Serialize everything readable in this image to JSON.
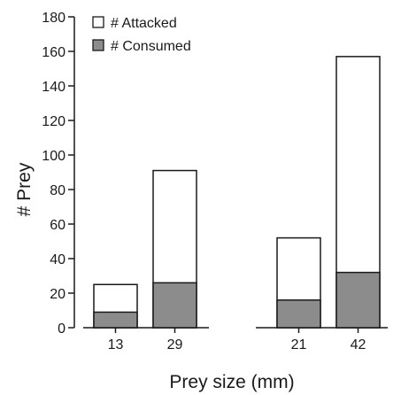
{
  "chart_data": {
    "type": "bar",
    "stacked": true,
    "xlabel": "Prey size (mm)",
    "ylabel": "# Prey",
    "ylim": [
      0,
      180
    ],
    "yticks": [
      0,
      20,
      40,
      60,
      80,
      100,
      120,
      140,
      160,
      180
    ],
    "grid": false,
    "legend_position": "top-left",
    "groups": [
      {
        "categories": [
          "13",
          "29"
        ]
      },
      {
        "categories": [
          "21",
          "42"
        ]
      }
    ],
    "categories": [
      "13",
      "29",
      "21",
      "42"
    ],
    "series": [
      {
        "name": "# Attacked",
        "values": [
          25,
          91,
          52,
          157
        ],
        "color": "#ffffff"
      },
      {
        "name": "# Consumed",
        "values": [
          9,
          26,
          16,
          32
        ],
        "color": "#8c8c8c"
      }
    ]
  }
}
